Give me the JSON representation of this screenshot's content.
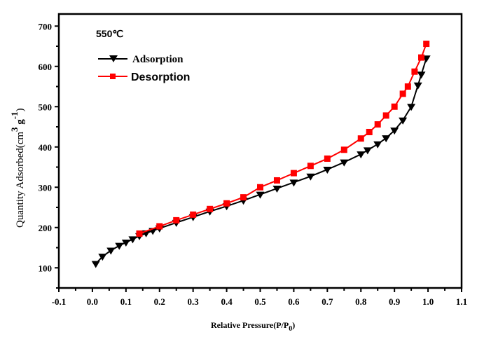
{
  "chart_data": {
    "type": "line",
    "title": "",
    "annotation": "550℃",
    "xlabel": "Relative Pressure(P/P0)",
    "xlabel_parts": {
      "main": "Relative Pressure(P/P",
      "sub": "0",
      "close": ")"
    },
    "ylabel": "Quantity Adsorbed(cm3g-1)",
    "ylabel_parts": {
      "main": "Quantity Adsorbed(cm",
      "sup1": "3",
      "mid": " g",
      "sup2": "-1",
      "close": ")"
    },
    "xlim": [
      -0.1,
      1.1
    ],
    "ylim": [
      50,
      730
    ],
    "x_ticks": [
      "-0.1",
      "0.0",
      "0.1",
      "0.2",
      "0.3",
      "0.4",
      "0.5",
      "0.6",
      "0.7",
      "0.8",
      "0.9",
      "1.0",
      "1.1"
    ],
    "y_ticks": [
      "100",
      "200",
      "300",
      "400",
      "500",
      "600",
      "700"
    ],
    "grid": false,
    "legend_position": "top-left",
    "series": [
      {
        "name": "Adsorption",
        "color": "#000000",
        "marker": "triangle-down",
        "x": [
          0.01,
          0.03,
          0.055,
          0.08,
          0.1,
          0.12,
          0.14,
          0.16,
          0.18,
          0.2,
          0.25,
          0.3,
          0.35,
          0.4,
          0.45,
          0.5,
          0.55,
          0.6,
          0.65,
          0.7,
          0.75,
          0.8,
          0.82,
          0.85,
          0.875,
          0.9,
          0.925,
          0.95,
          0.97,
          0.98,
          0.995
        ],
        "y": [
          110,
          128,
          143,
          155,
          163,
          171,
          179,
          186,
          192,
          198,
          212,
          226,
          240,
          253,
          267,
          282,
          297,
          312,
          327,
          344,
          362,
          382,
          392,
          407,
          422,
          441,
          466,
          500,
          553,
          580,
          620
        ]
      },
      {
        "name": "Desorption",
        "color": "#ff0000",
        "marker": "square",
        "x": [
          0.14,
          0.2,
          0.25,
          0.3,
          0.35,
          0.4,
          0.45,
          0.5,
          0.55,
          0.6,
          0.65,
          0.7,
          0.75,
          0.8,
          0.825,
          0.85,
          0.875,
          0.9,
          0.925,
          0.94,
          0.96,
          0.98,
          0.995
        ],
        "y": [
          185,
          203,
          218,
          232,
          246,
          260,
          275,
          300,
          317,
          335,
          353,
          371,
          393,
          421,
          437,
          456,
          478,
          500,
          532,
          550,
          587,
          622,
          656
        ]
      }
    ]
  }
}
